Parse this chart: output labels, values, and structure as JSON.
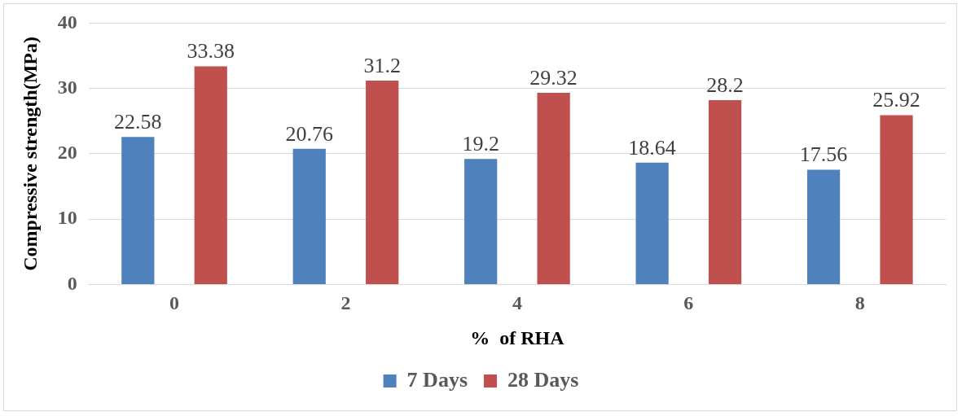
{
  "chart_data": {
    "type": "bar",
    "xlabel": "%  of RHA",
    "ylabel": "Compressive strength(MPa)",
    "categories": [
      "0",
      "2",
      "4",
      "6",
      "8"
    ],
    "series": [
      {
        "name": "7 Days",
        "color": "#4f81bd",
        "values": [
          22.58,
          20.76,
          19.2,
          18.64,
          17.56
        ]
      },
      {
        "name": "28 Days",
        "color": "#c0504d",
        "values": [
          33.38,
          31.2,
          29.32,
          28.2,
          25.92
        ]
      }
    ],
    "ylim": [
      0,
      40
    ],
    "yticks": [
      0,
      10,
      20,
      30,
      40
    ],
    "grid": "y",
    "legend": "bottom",
    "data_labels": true
  }
}
